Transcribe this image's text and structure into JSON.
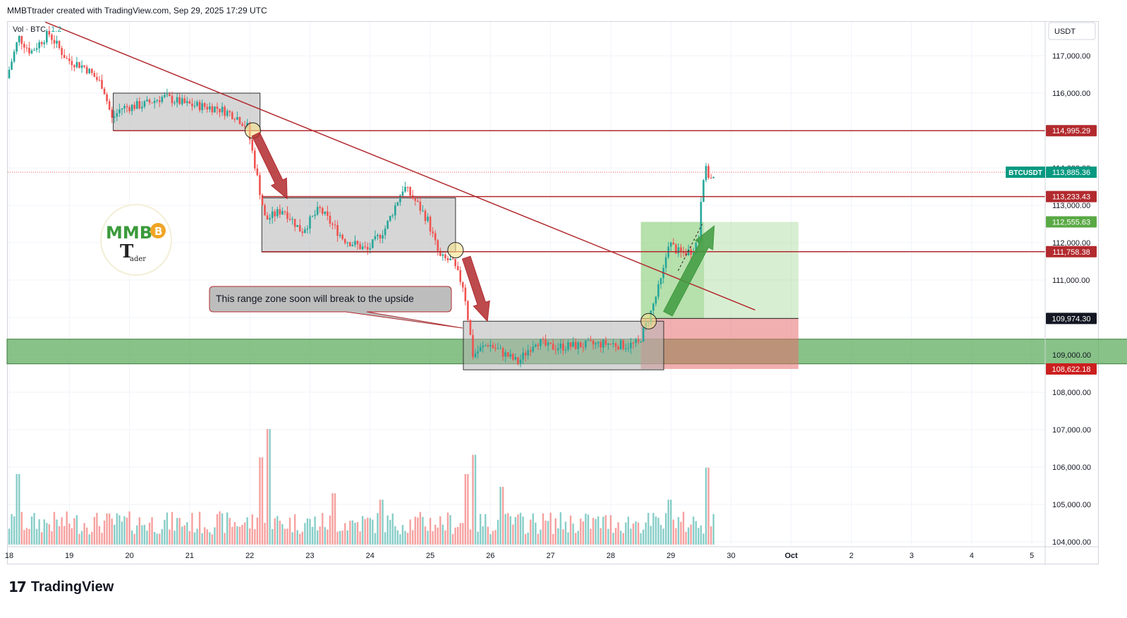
{
  "header": {
    "attribution": "MMBTtrader created with TradingView.com, Sep 29, 2025 17:29 UTC"
  },
  "legend": {
    "volume_label": "Vol · BTC",
    "volume_value": "1.2"
  },
  "axis": {
    "currency": "USDT"
  },
  "footer": {
    "brand": "TradingView"
  },
  "watermark": {
    "text": "MMB",
    "subtext": "ader"
  },
  "annotation": {
    "text": "This range zone soon will break to the upside"
  },
  "colors": {
    "up": "#26a69a",
    "down": "#ef5350",
    "trend_line": "#b22a2e",
    "support_zone": "#5aaa5a",
    "range_box": "#b4b4b4",
    "target_zone": "#8fce7e",
    "stop_zone": "#e76d6d",
    "ticker_badge": "#089981"
  },
  "chart_data": {
    "type": "candlestick",
    "symbol": "BTCUSDT",
    "y_ticks": [
      104000,
      105000,
      106000,
      107000,
      108000,
      109000,
      110000,
      111000,
      112000,
      113000,
      114000,
      115000,
      116000,
      117000
    ],
    "y_tick_labels": [
      "104,000.00",
      "105,000.00",
      "106,000.00",
      "107,000.00",
      "108,000.00",
      "109,000.00",
      "110,000.00",
      "111,000.00",
      "112,000.00",
      "113,000.00",
      "114,000.00",
      "115,000.00",
      "116,000.00",
      "117,000.00"
    ],
    "x_labels": [
      {
        "day": 18,
        "label": "18"
      },
      {
        "day": 19,
        "label": "19"
      },
      {
        "day": 20,
        "label": "20"
      },
      {
        "day": 21,
        "label": "21"
      },
      {
        "day": 22,
        "label": "22"
      },
      {
        "day": 23,
        "label": "23"
      },
      {
        "day": 24,
        "label": "24"
      },
      {
        "day": 25,
        "label": "25"
      },
      {
        "day": 26,
        "label": "26"
      },
      {
        "day": 27,
        "label": "27"
      },
      {
        "day": 28,
        "label": "28"
      },
      {
        "day": 29,
        "label": "29"
      },
      {
        "day": 30,
        "label": "30"
      },
      {
        "day": 31,
        "label": "Oct"
      },
      {
        "day": 32,
        "label": "2"
      },
      {
        "day": 33,
        "label": "3"
      },
      {
        "day": 34,
        "label": "4"
      },
      {
        "day": 35,
        "label": "5"
      }
    ],
    "current_price": {
      "label": "BTCUSDT",
      "value": "113,885.36"
    },
    "levels": [
      {
        "value": 114995.29,
        "label": "114,995.29",
        "color": "#b22a2e"
      },
      {
        "value": 113233.43,
        "label": "113,233.43",
        "color": "#b22a2e"
      },
      {
        "value": 112555.63,
        "label": "112,555.63",
        "color": "#5aa945"
      },
      {
        "value": 111758.38,
        "label": "111,758.38",
        "color": "#b22a2e"
      },
      {
        "value": 109974.3,
        "label": "109,974.30",
        "color": "#131722"
      },
      {
        "value": 108622.18,
        "label": "108,622.18",
        "color": "#cc1f1f"
      }
    ],
    "close_path": [
      [
        18.0,
        116400
      ],
      [
        18.2,
        117500
      ],
      [
        18.4,
        117100
      ],
      [
        18.7,
        117600
      ],
      [
        19.0,
        116900
      ],
      [
        19.3,
        116700
      ],
      [
        19.6,
        116200
      ],
      [
        19.75,
        115300
      ],
      [
        19.9,
        115600
      ],
      [
        20.3,
        115700
      ],
      [
        20.6,
        115900
      ],
      [
        21.0,
        115700
      ],
      [
        21.5,
        115600
      ],
      [
        21.8,
        115400
      ],
      [
        22.0,
        115100
      ],
      [
        22.1,
        114300
      ],
      [
        22.3,
        112600
      ],
      [
        22.6,
        112900
      ],
      [
        22.9,
        112300
      ],
      [
        23.2,
        112900
      ],
      [
        23.6,
        112100
      ],
      [
        24.0,
        111800
      ],
      [
        24.3,
        112400
      ],
      [
        24.6,
        113500
      ],
      [
        24.8,
        113100
      ],
      [
        25.0,
        112600
      ],
      [
        25.2,
        111600
      ],
      [
        25.4,
        111500
      ],
      [
        25.6,
        110800
      ],
      [
        25.75,
        109000
      ],
      [
        26.0,
        109300
      ],
      [
        26.5,
        108800
      ],
      [
        26.8,
        109400
      ],
      [
        27.0,
        109200
      ],
      [
        27.5,
        109250
      ],
      [
        28.0,
        109300
      ],
      [
        28.3,
        109250
      ],
      [
        28.5,
        109300
      ],
      [
        28.7,
        110100
      ],
      [
        28.9,
        111100
      ],
      [
        29.0,
        112000
      ],
      [
        29.2,
        111700
      ],
      [
        29.4,
        111800
      ],
      [
        29.5,
        112100
      ],
      [
        29.55,
        113400
      ],
      [
        29.6,
        114000
      ],
      [
        29.7,
        113700
      ]
    ],
    "volume_spikes": [
      [
        18.15,
        0.55
      ],
      [
        22.2,
        0.68
      ],
      [
        22.3,
        0.9
      ],
      [
        23.4,
        0.4
      ],
      [
        24.2,
        0.35
      ],
      [
        25.6,
        0.55
      ],
      [
        25.75,
        0.7
      ],
      [
        26.2,
        0.45
      ],
      [
        29.0,
        0.35
      ],
      [
        29.6,
        0.6
      ]
    ],
    "range_boxes": [
      {
        "x1": 19.73,
        "x2": 22.17,
        "y1": 115000,
        "y2": 116000
      },
      {
        "x1": 22.2,
        "x2": 25.42,
        "y1": 111750,
        "y2": 113200
      },
      {
        "x1": 25.55,
        "x2": 28.88,
        "y1": 108600,
        "y2": 109900
      }
    ],
    "support_zone": {
      "x1": 18.0,
      "x2": 36.6,
      "y1": 108760,
      "y2": 109420
    },
    "position": {
      "x1": 28.5,
      "x2": 31.12,
      "entry": 109974.3,
      "target": 112555.63,
      "stop": 108622.18
    },
    "trend_line": [
      [
        18.6,
        117900
      ],
      [
        30.4,
        110200
      ]
    ],
    "horizontal_lines": [
      {
        "x1": 19.73,
        "value": 114995.29
      },
      {
        "x1": 22.2,
        "value": 113233.43
      },
      {
        "x1": 22.2,
        "value": 111758.38
      }
    ],
    "circles": [
      [
        22.05,
        115000
      ],
      [
        25.42,
        111800
      ],
      [
        28.63,
        109900
      ]
    ]
  }
}
